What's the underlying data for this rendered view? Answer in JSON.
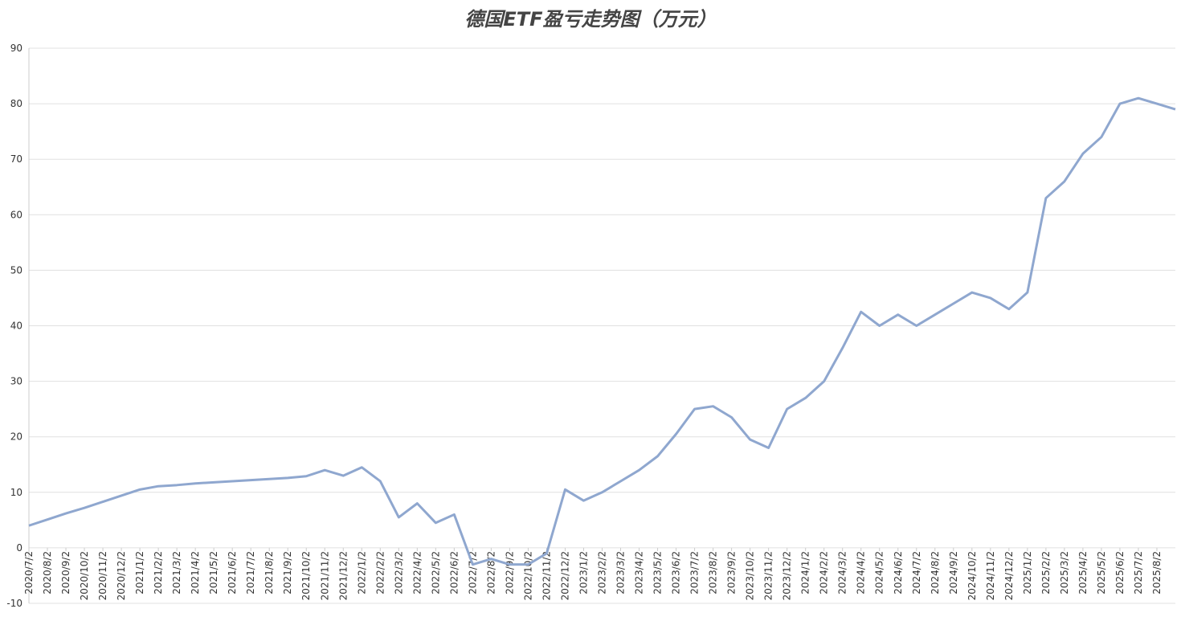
{
  "chart_data": {
    "type": "line",
    "title": "德国ETF盈亏走势图（万元）",
    "categories": [
      "2020/7/2",
      "2020/8/2",
      "2020/9/2",
      "2020/10/2",
      "2020/11/2",
      "2020/12/2",
      "2021/1/2",
      "2021/2/2",
      "2021/3/2",
      "2021/4/2",
      "2021/5/2",
      "2021/6/2",
      "2021/7/2",
      "2021/8/2",
      "2021/9/2",
      "2021/10/2",
      "2021/11/2",
      "2021/12/2",
      "2022/1/2",
      "2022/2/2",
      "2022/3/2",
      "2022/4/2",
      "2022/5/2",
      "2022/6/2",
      "2022/7/2",
      "2022/8/2",
      "2022/9/2",
      "2022/10/2",
      "2022/11/2",
      "2022/12/2",
      "2023/1/2",
      "2023/2/2",
      "2023/3/2",
      "2023/4/2",
      "2023/5/2",
      "2023/6/2",
      "2023/7/2",
      "2023/8/2",
      "2023/9/2",
      "2023/10/2",
      "2023/11/2",
      "2023/12/2",
      "2024/1/2",
      "2024/2/2",
      "2024/3/2",
      "2024/4/2",
      "2024/5/2",
      "2024/6/2",
      "2024/7/2",
      "2024/8/2",
      "2024/9/2",
      "2024/10/2",
      "2024/11/2",
      "2024/12/2",
      "2025/1/2",
      "2025/2/2",
      "2025/3/2",
      "2025/4/2",
      "2025/5/2",
      "2025/6/2",
      "2025/7/2",
      "2025/8/2",
      null
    ],
    "series": [
      {
        "color": "#8fa7cf",
        "values": [
          4,
          5.1,
          6.2,
          7.2,
          8.3,
          9.4,
          10.5,
          11.1,
          11.3,
          11.6,
          11.8,
          12,
          12.2,
          12.4,
          12.6,
          12.9,
          14,
          13,
          14.5,
          12,
          5.5,
          8,
          4.5,
          6,
          -3,
          -2,
          -3,
          -3,
          -1,
          10.5,
          8.5,
          10,
          12,
          14,
          16.5,
          20.5,
          25,
          25.5,
          23.5,
          19.5,
          18,
          25,
          27,
          30,
          36,
          42.5,
          40,
          42,
          40,
          42,
          44,
          46,
          45,
          43,
          46,
          63,
          66,
          71,
          74,
          80,
          81,
          80,
          79
        ]
      }
    ],
    "ylim": [
      -10,
      90
    ],
    "yticks": [
      -10,
      0,
      10,
      20,
      30,
      40,
      50,
      60,
      70,
      80,
      90
    ],
    "grid": true
  }
}
